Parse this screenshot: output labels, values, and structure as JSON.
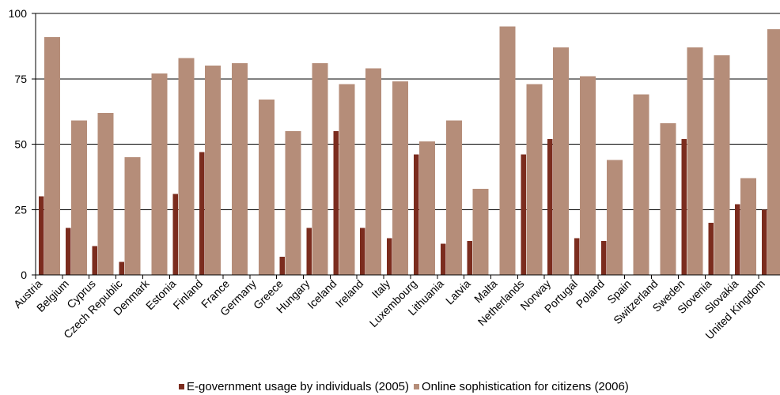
{
  "chart_data": {
    "type": "bar",
    "categories": [
      "Austria",
      "Belgium",
      "Cyprus",
      "Czech Republic",
      "Denmark",
      "Estonia",
      "Finland",
      "France",
      "Germany",
      "Greece",
      "Hungary",
      "Iceland",
      "Ireland",
      "Italy",
      "Luxembourg",
      "Lithuania",
      "Latvia",
      "Malta",
      "Netherlands",
      "Norway",
      "Portugal",
      "Poland",
      "Spain",
      "Switzerland",
      "Sweden",
      "Slovenia",
      "Slovakia",
      "United Kingdom"
    ],
    "series": [
      {
        "name": "E-government usage by individuals (2005)",
        "color": "#7B2C1E",
        "values": [
          30,
          18,
          11,
          5,
          null,
          31,
          47,
          null,
          null,
          7,
          18,
          55,
          18,
          14,
          46,
          12,
          13,
          null,
          46,
          52,
          14,
          13,
          null,
          null,
          52,
          20,
          27,
          25
        ]
      },
      {
        "name": "Online sophistication for citizens (2006)",
        "color": "#B58D79",
        "values": [
          91,
          59,
          62,
          45,
          77,
          83,
          80,
          81,
          67,
          55,
          81,
          73,
          79,
          74,
          51,
          59,
          33,
          95,
          73,
          87,
          76,
          44,
          69,
          58,
          87,
          84,
          37,
          94
        ]
      }
    ],
    "yticks": [
      0,
      25,
      50,
      75,
      100
    ],
    "ylim": [
      0,
      100
    ],
    "grid": true,
    "legend": "bottom"
  }
}
